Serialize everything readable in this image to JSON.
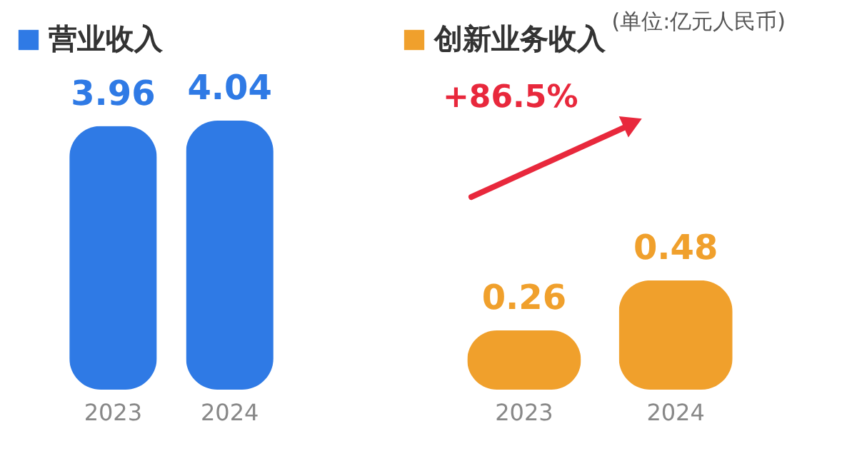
{
  "chart_data": [
    {
      "type": "bar",
      "categories": [
        "2023",
        "2024"
      ],
      "series": [
        {
          "name": "营业收入",
          "color": "#2f7ae5",
          "values": [
            3.96,
            4.04
          ]
        }
      ],
      "data_labels": true,
      "legend": "top left"
    },
    {
      "type": "bar",
      "title": "(单位:亿元人民币)",
      "categories": [
        "2023",
        "2024"
      ],
      "series": [
        {
          "name": "创新业务收入",
          "color": "#f0a02c",
          "values": [
            0.26,
            0.48
          ]
        }
      ],
      "data_labels": true,
      "legend": "top left",
      "annotations": [
        "+86.5%"
      ]
    }
  ]
}
